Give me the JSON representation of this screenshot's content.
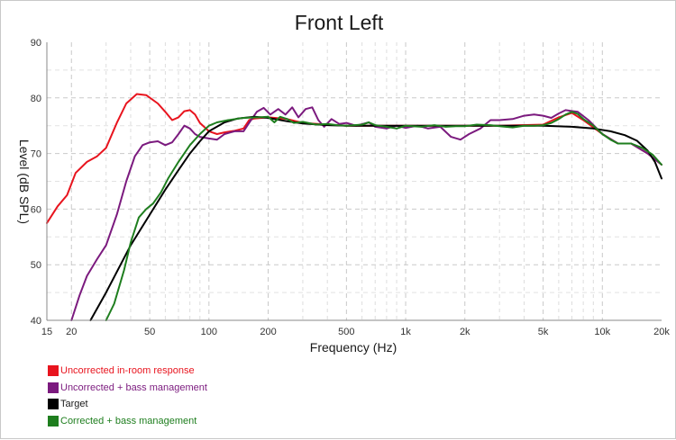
{
  "chart_data": {
    "type": "line",
    "title": "Front Left",
    "xlabel": "Frequency (Hz)",
    "ylabel": "Level (dB SPL)",
    "x_scale": "log",
    "xlim": [
      15,
      20000
    ],
    "ylim": [
      40,
      90
    ],
    "grid": true,
    "legend_position": "bottom-left",
    "x_ticks": [
      {
        "value": 15,
        "label": "15"
      },
      {
        "value": 20,
        "label": "20"
      },
      {
        "value": 50,
        "label": "50"
      },
      {
        "value": 100,
        "label": "100"
      },
      {
        "value": 200,
        "label": "200"
      },
      {
        "value": 500,
        "label": "500"
      },
      {
        "value": 1000,
        "label": "1k"
      },
      {
        "value": 2000,
        "label": "2k"
      },
      {
        "value": 5000,
        "label": "5k"
      },
      {
        "value": 10000,
        "label": "10k"
      },
      {
        "value": 20000,
        "label": "20k"
      }
    ],
    "y_ticks": [
      {
        "value": 40,
        "label": "40"
      },
      {
        "value": 50,
        "label": "50"
      },
      {
        "value": 60,
        "label": "60"
      },
      {
        "value": 70,
        "label": "70"
      },
      {
        "value": 80,
        "label": "80"
      },
      {
        "value": 90,
        "label": "90"
      }
    ],
    "series": [
      {
        "name": "Uncorrected in-room response",
        "color": "#e8141e",
        "points": [
          [
            15,
            57.5
          ],
          [
            17,
            60.5
          ],
          [
            19,
            62.5
          ],
          [
            21,
            66.5
          ],
          [
            24,
            68.5
          ],
          [
            27,
            69.5
          ],
          [
            30,
            71
          ],
          [
            34,
            75.5
          ],
          [
            38,
            79
          ],
          [
            43,
            80.7
          ],
          [
            48,
            80.5
          ],
          [
            55,
            79
          ],
          [
            60,
            77.5
          ],
          [
            65,
            76
          ],
          [
            70,
            76.5
          ],
          [
            75,
            77.6
          ],
          [
            80,
            77.8
          ],
          [
            85,
            77
          ],
          [
            90,
            75.5
          ],
          [
            100,
            74
          ],
          [
            110,
            73.5
          ],
          [
            120,
            73.8
          ],
          [
            135,
            74.1
          ],
          [
            150,
            74.5
          ],
          [
            160,
            76
          ],
          [
            170,
            76.3
          ],
          [
            200,
            76.5
          ],
          [
            250,
            76.2
          ],
          [
            300,
            75.5
          ],
          [
            400,
            75.2
          ],
          [
            500,
            75
          ],
          [
            700,
            75
          ],
          [
            1000,
            75
          ],
          [
            2000,
            75
          ],
          [
            3000,
            75
          ],
          [
            5000,
            75.2
          ],
          [
            6000,
            76.5
          ],
          [
            7000,
            77.3
          ],
          [
            8000,
            76
          ],
          [
            10000,
            73.5
          ],
          [
            12000,
            71.8
          ],
          [
            14000,
            71.8
          ],
          [
            17000,
            70
          ],
          [
            20000,
            68
          ]
        ]
      },
      {
        "name": "Uncorrected + bass management",
        "color": "#7b1a7e",
        "points": [
          [
            20,
            40
          ],
          [
            22,
            44.5
          ],
          [
            24,
            48
          ],
          [
            27,
            51
          ],
          [
            30,
            53.5
          ],
          [
            34,
            59
          ],
          [
            38,
            65
          ],
          [
            42,
            69.5
          ],
          [
            46,
            71.5
          ],
          [
            50,
            72
          ],
          [
            55,
            72.2
          ],
          [
            60,
            71.5
          ],
          [
            65,
            72
          ],
          [
            70,
            73.5
          ],
          [
            75,
            75
          ],
          [
            80,
            74.5
          ],
          [
            85,
            73.5
          ],
          [
            90,
            73
          ],
          [
            100,
            72.7
          ],
          [
            110,
            72.5
          ],
          [
            120,
            73.5
          ],
          [
            135,
            74
          ],
          [
            150,
            74
          ],
          [
            160,
            75.5
          ],
          [
            175,
            77.5
          ],
          [
            190,
            78.2
          ],
          [
            205,
            77
          ],
          [
            225,
            78
          ],
          [
            245,
            77
          ],
          [
            265,
            78.3
          ],
          [
            285,
            76.5
          ],
          [
            310,
            78
          ],
          [
            335,
            78.3
          ],
          [
            360,
            76
          ],
          [
            385,
            74.8
          ],
          [
            420,
            76.2
          ],
          [
            460,
            75.3
          ],
          [
            500,
            75.5
          ],
          [
            560,
            75
          ],
          [
            650,
            75.6
          ],
          [
            700,
            74.8
          ],
          [
            800,
            74.5
          ],
          [
            900,
            75
          ],
          [
            1000,
            74.6
          ],
          [
            1150,
            75
          ],
          [
            1300,
            74.5
          ],
          [
            1500,
            74.8
          ],
          [
            1700,
            73
          ],
          [
            1900,
            72.5
          ],
          [
            2100,
            73.5
          ],
          [
            2400,
            74.5
          ],
          [
            2700,
            76
          ],
          [
            3000,
            76
          ],
          [
            3500,
            76.2
          ],
          [
            4000,
            76.8
          ],
          [
            4500,
            77
          ],
          [
            5000,
            76.8
          ],
          [
            5500,
            76.4
          ],
          [
            6000,
            77.2
          ],
          [
            6500,
            77.8
          ],
          [
            7500,
            77.5
          ],
          [
            8500,
            76
          ],
          [
            10000,
            73.5
          ],
          [
            12000,
            71.8
          ],
          [
            14000,
            71.8
          ],
          [
            17000,
            70
          ],
          [
            20000,
            68
          ]
        ]
      },
      {
        "name": "Target",
        "color": "#000000",
        "points": [
          [
            25,
            40
          ],
          [
            30,
            45
          ],
          [
            40,
            53.5
          ],
          [
            50,
            59
          ],
          [
            60,
            63.5
          ],
          [
            70,
            67
          ],
          [
            80,
            70
          ],
          [
            90,
            72.2
          ],
          [
            100,
            74
          ],
          [
            120,
            75.6
          ],
          [
            140,
            76.3
          ],
          [
            170,
            76.6
          ],
          [
            200,
            76.4
          ],
          [
            250,
            75.8
          ],
          [
            300,
            75.4
          ],
          [
            400,
            75.1
          ],
          [
            500,
            75
          ],
          [
            1000,
            75
          ],
          [
            2000,
            75
          ],
          [
            5000,
            75
          ],
          [
            7000,
            74.8
          ],
          [
            9000,
            74.5
          ],
          [
            11000,
            74
          ],
          [
            13000,
            73.3
          ],
          [
            15000,
            72.3
          ],
          [
            17000,
            70.5
          ],
          [
            18500,
            68.5
          ],
          [
            20000,
            65.5
          ]
        ]
      },
      {
        "name": "Corrected + bass management",
        "color": "#1e7e1e",
        "points": [
          [
            30,
            40
          ],
          [
            33,
            43
          ],
          [
            37,
            49
          ],
          [
            40,
            54
          ],
          [
            44,
            58.5
          ],
          [
            48,
            60
          ],
          [
            52,
            61
          ],
          [
            57,
            63
          ],
          [
            62,
            65.5
          ],
          [
            70,
            68.5
          ],
          [
            80,
            71.5
          ],
          [
            90,
            73.5
          ],
          [
            100,
            75
          ],
          [
            110,
            75.6
          ],
          [
            125,
            76
          ],
          [
            150,
            76.4
          ],
          [
            180,
            76.5
          ],
          [
            200,
            76.6
          ],
          [
            215,
            75.6
          ],
          [
            230,
            76.6
          ],
          [
            250,
            76.2
          ],
          [
            270,
            75.5
          ],
          [
            300,
            75.7
          ],
          [
            350,
            75.2
          ],
          [
            400,
            75.3
          ],
          [
            450,
            75.1
          ],
          [
            500,
            75
          ],
          [
            600,
            75.2
          ],
          [
            650,
            75.6
          ],
          [
            700,
            75.1
          ],
          [
            800,
            74.8
          ],
          [
            900,
            74.5
          ],
          [
            1000,
            75
          ],
          [
            1200,
            74.8
          ],
          [
            1400,
            75.1
          ],
          [
            1600,
            74.8
          ],
          [
            1800,
            74.9
          ],
          [
            2000,
            74.9
          ],
          [
            2300,
            75.2
          ],
          [
            2700,
            75.1
          ],
          [
            3000,
            74.9
          ],
          [
            3500,
            74.7
          ],
          [
            4000,
            75
          ],
          [
            4500,
            75
          ],
          [
            5000,
            75.1
          ],
          [
            5500,
            75.5
          ],
          [
            6000,
            76.2
          ],
          [
            6500,
            77
          ],
          [
            7000,
            77.5
          ],
          [
            7500,
            77.1
          ],
          [
            8000,
            76.2
          ],
          [
            9000,
            75
          ],
          [
            10000,
            73.5
          ],
          [
            11000,
            72.5
          ],
          [
            12000,
            71.8
          ],
          [
            14000,
            71.8
          ],
          [
            16000,
            71
          ],
          [
            18000,
            69.8
          ],
          [
            20000,
            68
          ]
        ]
      }
    ]
  }
}
